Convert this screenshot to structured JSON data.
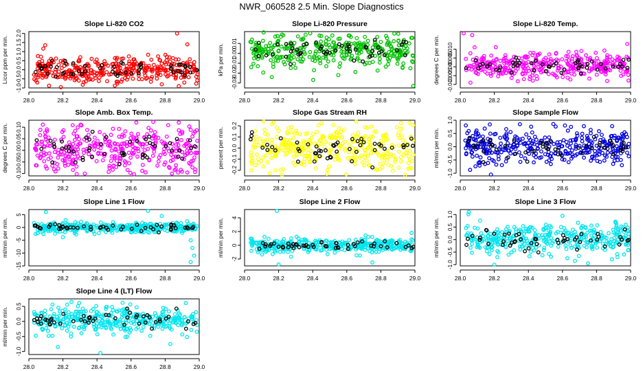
{
  "page": {
    "title": "NWR_060528  2.5 Min. Slope Diagnostics"
  },
  "chart_data": [
    {
      "type": "scatter",
      "title": "Slope Li-820 CO2",
      "ylabel": "Licor ppm per min.",
      "xlim": [
        28.0,
        29.0
      ],
      "xticks": [
        "28.0",
        "28.2",
        "28.4",
        "28.6",
        "28.8",
        "29.0"
      ],
      "ylim": [
        -1.0,
        2.1
      ],
      "yticks": [
        -1.0,
        -0.5,
        0.0,
        0.5,
        1.0,
        1.5,
        2.0
      ],
      "ytick_labels": [
        "-1.0",
        "-0.5",
        "0.0",
        "0.5",
        "1.0",
        "1.5",
        "2.0"
      ],
      "color": "#ff0000",
      "n_points": 360,
      "n_black": 50,
      "center": 0.0,
      "spread": 0.38,
      "seed": 11,
      "outliers": [
        [
          28.87,
          2.0
        ],
        [
          28.88,
          -0.9
        ],
        [
          28.78,
          -0.8
        ],
        [
          28.93,
          1.4
        ]
      ]
    },
    {
      "type": "scatter",
      "title": "Slope Li-820 Pressure",
      "ylabel": "kPa per min.",
      "xlim": [
        28.0,
        29.0
      ],
      "xticks": [
        "28.0",
        "28.2",
        "28.4",
        "28.6",
        "28.8",
        "29.0"
      ],
      "ylim": [
        -0.035,
        0.022
      ],
      "yticks": [
        -0.03,
        -0.02,
        -0.01,
        0.0,
        0.01
      ],
      "ytick_labels": [
        "-0.03",
        "-0.02",
        "-0.01",
        "0.00",
        "0.01"
      ],
      "color": "#00c000",
      "n_points": 360,
      "n_black": 50,
      "center": 0.004,
      "spread": 0.0085,
      "seed": 23,
      "outliers": [
        [
          28.99,
          -0.033
        ],
        [
          28.22,
          0.019
        ],
        [
          28.44,
          0.018
        ],
        [
          28.16,
          -0.024
        ],
        [
          28.55,
          -0.022
        ]
      ]
    },
    {
      "type": "scatter",
      "title": "Slope Li-820 Temp.",
      "ylabel": "degrees C per min.",
      "xlim": [
        28.0,
        29.0
      ],
      "xticks": [
        "28.0",
        "28.2",
        "28.4",
        "28.6",
        "28.8",
        "29.0"
      ],
      "ylim": [
        -0.012,
        0.02
      ],
      "yticks": [
        -0.01,
        -0.005,
        0.0,
        0.005,
        0.01
      ],
      "ytick_labels": [
        "-0.010",
        "-0.005",
        "0.000",
        "0.005",
        "0.010"
      ],
      "color": "#ff00ff",
      "n_points": 360,
      "n_black": 50,
      "center": 0.0005,
      "spread": 0.0035,
      "seed": 37,
      "outliers": [
        [
          28.02,
          0.019
        ],
        [
          28.07,
          0.018
        ],
        [
          28.06,
          -0.009
        ],
        [
          28.98,
          0.013
        ]
      ]
    },
    {
      "type": "scatter",
      "title": "Slope Amb. Box Temp.",
      "ylabel": "degrees C per min.",
      "xlim": [
        28.0,
        29.0
      ],
      "xticks": [
        "28.0",
        "28.2",
        "28.4",
        "28.6",
        "28.8",
        "29.0"
      ],
      "ylim": [
        -0.11,
        0.13
      ],
      "yticks": [
        -0.1,
        -0.05,
        0.0,
        0.05,
        0.1
      ],
      "ytick_labels": [
        "-0.10",
        "-0.05",
        "0.00",
        "0.05",
        "0.10"
      ],
      "color": "#ff00ff",
      "n_points": 360,
      "n_black": 50,
      "center": 0.0,
      "spread": 0.055,
      "seed": 41,
      "outliers": [
        [
          28.88,
          0.12
        ],
        [
          28.84,
          -0.1
        ]
      ]
    },
    {
      "type": "scatter",
      "title": "Slope Gas Stream RH",
      "ylabel": "percent per min.",
      "xlim": [
        28.0,
        29.0
      ],
      "xticks": [
        "28.0",
        "28.2",
        "28.4",
        "28.6",
        "28.8",
        "29.0"
      ],
      "ylim": [
        -0.25,
        0.25
      ],
      "yticks": [
        -0.2,
        -0.1,
        0.0,
        0.1,
        0.2
      ],
      "ytick_labels": [
        "-0.2",
        "-0.1",
        "0.0",
        "0.1",
        "0.2"
      ],
      "color": "#ffff00",
      "n_points": 360,
      "n_black": 50,
      "center": 0.0,
      "spread": 0.11,
      "seed": 53,
      "outliers": [
        [
          28.17,
          0.23
        ],
        [
          28.22,
          -0.24
        ]
      ]
    },
    {
      "type": "scatter",
      "title": "Slope Sample Flow",
      "ylabel": "ml/min per min.",
      "xlim": [
        28.0,
        29.0
      ],
      "xticks": [
        "28.0",
        "28.2",
        "28.4",
        "28.6",
        "28.8",
        "29.0"
      ],
      "ylim": [
        -1.1,
        1.0
      ],
      "yticks": [
        -1.0,
        -0.5,
        0.0,
        0.5,
        1.0
      ],
      "ytick_labels": [
        "-1.0",
        "-0.5",
        "0.0",
        "0.5",
        "1.0"
      ],
      "color": "#0000dd",
      "n_points": 360,
      "n_black": 50,
      "center": 0.0,
      "spread": 0.3,
      "seed": 67,
      "outliers": [
        [
          28.18,
          -1.05
        ],
        [
          28.35,
          0.85
        ],
        [
          28.65,
          0.75
        ]
      ]
    },
    {
      "type": "scatter",
      "title": "Slope Line 1 Flow",
      "ylabel": "ml/min per min.",
      "xlim": [
        28.0,
        29.0
      ],
      "xticks": [
        "28.0",
        "28.2",
        "28.4",
        "28.6",
        "28.8",
        "29.0"
      ],
      "ylim": [
        -15,
        7
      ],
      "yticks": [
        -15,
        -10,
        -5,
        0,
        5
      ],
      "ytick_labels": [
        "-15",
        "-10",
        "-5",
        "0",
        "5"
      ],
      "color": "#00e5ee",
      "n_points": 360,
      "n_black": 50,
      "center": 0.0,
      "spread": 1.0,
      "seed": 71,
      "outliers": [
        [
          28.1,
          6.0
        ],
        [
          28.7,
          6.5
        ],
        [
          28.95,
          -5
        ],
        [
          28.96,
          -8
        ],
        [
          28.97,
          -11
        ],
        [
          28.95,
          -13.5
        ],
        [
          28.2,
          -3.8
        ],
        [
          28.78,
          4.5
        ],
        [
          28.04,
          -2.5
        ]
      ]
    },
    {
      "type": "scatter",
      "title": "Slope Line 2 Flow",
      "ylabel": "ml/min per min.",
      "xlim": [
        28.0,
        29.0
      ],
      "xticks": [
        "28.0",
        "28.2",
        "28.4",
        "28.6",
        "28.8",
        "29.0"
      ],
      "ylim": [
        -3,
        5.2
      ],
      "yticks": [
        -2,
        0,
        2,
        4
      ],
      "ytick_labels": [
        "-2",
        "0",
        "2",
        "4"
      ],
      "color": "#00e5ee",
      "n_points": 360,
      "n_black": 50,
      "center": 0.0,
      "spread": 0.5,
      "seed": 83,
      "outliers": [
        [
          28.19,
          5.0
        ],
        [
          28.2,
          -2.8
        ],
        [
          28.75,
          -2.5
        ],
        [
          28.98,
          1.8
        ]
      ]
    },
    {
      "type": "scatter",
      "title": "Slope Line 3 Flow",
      "ylabel": "ml/min per min.",
      "xlim": [
        28.0,
        29.0
      ],
      "xticks": [
        "28.0",
        "28.2",
        "28.4",
        "28.6",
        "28.8",
        "29.0"
      ],
      "ylim": [
        -1.05,
        1.2
      ],
      "yticks": [
        -1.0,
        -0.5,
        0.0,
        0.5,
        1.0
      ],
      "ytick_labels": [
        "-1.0",
        "-0.5",
        "0.0",
        "0.5",
        "1.0"
      ],
      "color": "#00e5ee",
      "n_points": 360,
      "n_black": 50,
      "center": 0.0,
      "spread": 0.33,
      "seed": 97,
      "outliers": [
        [
          28.05,
          1.1
        ],
        [
          28.6,
          0.95
        ],
        [
          28.2,
          -1.0
        ],
        [
          28.75,
          -0.95
        ]
      ]
    },
    {
      "type": "scatter",
      "title": "Slope Line 4 (LT) Flow",
      "ylabel": "ml/min per min.",
      "xlim": [
        28.0,
        29.0
      ],
      "xticks": [
        "28.0",
        "28.2",
        "28.4",
        "28.6",
        "28.8",
        "29.0"
      ],
      "ylim": [
        -1.1,
        0.75
      ],
      "yticks": [
        -1.0,
        -0.5,
        0.0,
        0.5
      ],
      "ytick_labels": [
        "-1.0",
        "-0.5",
        "0.0",
        "0.5"
      ],
      "color": "#00e5ee",
      "n_points": 360,
      "n_black": 50,
      "center": 0.05,
      "spread": 0.22,
      "seed": 101,
      "outliers": [
        [
          28.17,
          -0.85
        ],
        [
          28.42,
          -1.05
        ],
        [
          28.83,
          -0.75
        ],
        [
          28.25,
          0.65
        ],
        [
          28.55,
          0.62
        ]
      ]
    }
  ]
}
